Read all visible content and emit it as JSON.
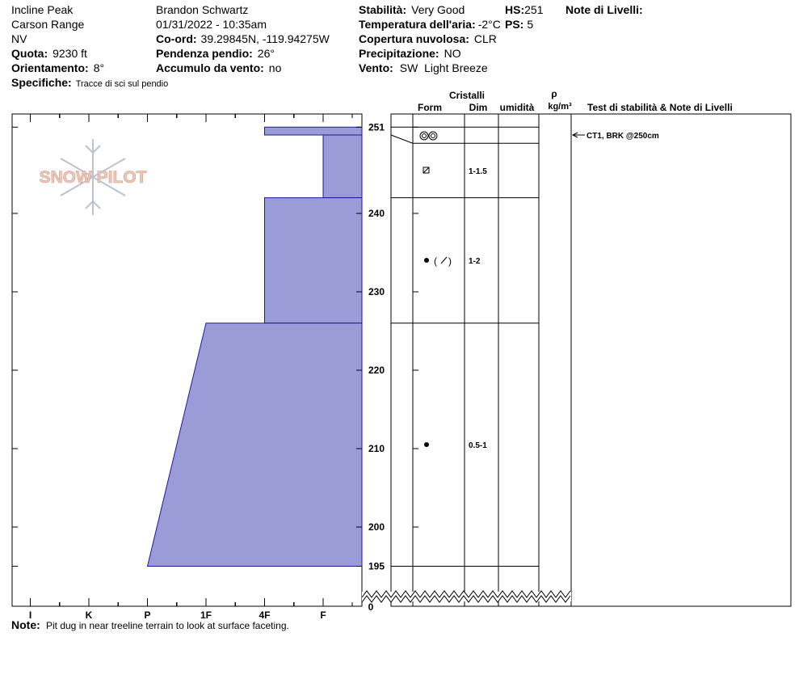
{
  "header": {
    "location": "Incline Peak",
    "range": "Carson Range",
    "state": "NV",
    "elevation": {
      "label": "Quota:",
      "value": "9230 ft"
    },
    "aspect": {
      "label": "Orientamento:",
      "value": "8°"
    },
    "comments": {
      "label": "Specifiche:",
      "value": "Tracce di sci sul pendio"
    },
    "observer": "Brandon Schwartz",
    "datetime": "01/31/2022 - 10:35am",
    "coords": {
      "label": "Co-ord:",
      "value": "39.29845N, -119.94275W"
    },
    "slope": {
      "label": "Pendenza pendio:",
      "value": "26°"
    },
    "wind_loading": {
      "label": "Accumulo da vento:",
      "value": "no"
    },
    "stability": {
      "label": "Stabilità:",
      "value": "Very Good"
    },
    "air_temp": {
      "label": "Temperatura dell'aria:",
      "value": "-2°C"
    },
    "sky": {
      "label": "Copertura nuvolosa:",
      "value": "CLR"
    },
    "precip": {
      "label": "Precipitazione:",
      "value": "NO"
    },
    "wind": {
      "label": "Vento:",
      "value": "SW  Light Breeze"
    },
    "hs": {
      "label": "HS:",
      "value": 251
    },
    "ps": {
      "label": "PS:",
      "value": 5
    },
    "layer_notes": {
      "label": "Note di Livelli:"
    }
  },
  "logo": "SNOW PILOT",
  "profile": {
    "hardness_scale": [
      "I",
      "K",
      "P",
      "1F",
      "4F",
      "F"
    ],
    "depth_ticks": [
      251,
      240,
      230,
      220,
      210,
      200,
      195
    ],
    "ground": 0,
    "layers": [
      {
        "top": 251,
        "bottom": 250,
        "hardness_top": "4F",
        "hardness_bottom": "4F"
      },
      {
        "top": 250,
        "bottom": 242,
        "hardness_top": "F",
        "hardness_bottom": "F",
        "size": "1-1.5"
      },
      {
        "top": 242,
        "bottom": 226,
        "hardness_top": "4F",
        "hardness_bottom": "4F",
        "size": "1-2"
      },
      {
        "top": 226,
        "bottom": 195,
        "hardness_top": "1F",
        "hardness_bottom": "P",
        "size": "0.5-1"
      }
    ]
  },
  "table": {
    "crystals": "Cristalli",
    "form": "Form",
    "size": "Dim",
    "moisture": "umidità",
    "density": "ρ",
    "density_unit": "kg/m³",
    "tests": "Test di stabilità & Note di Livelli"
  },
  "tests": [
    {
      "depth": 250,
      "text": "CT1, BRK @250cm"
    }
  ],
  "note": {
    "label": "Note:",
    "value": "Pit dug in near treeline terrain to look at surface faceting."
  }
}
